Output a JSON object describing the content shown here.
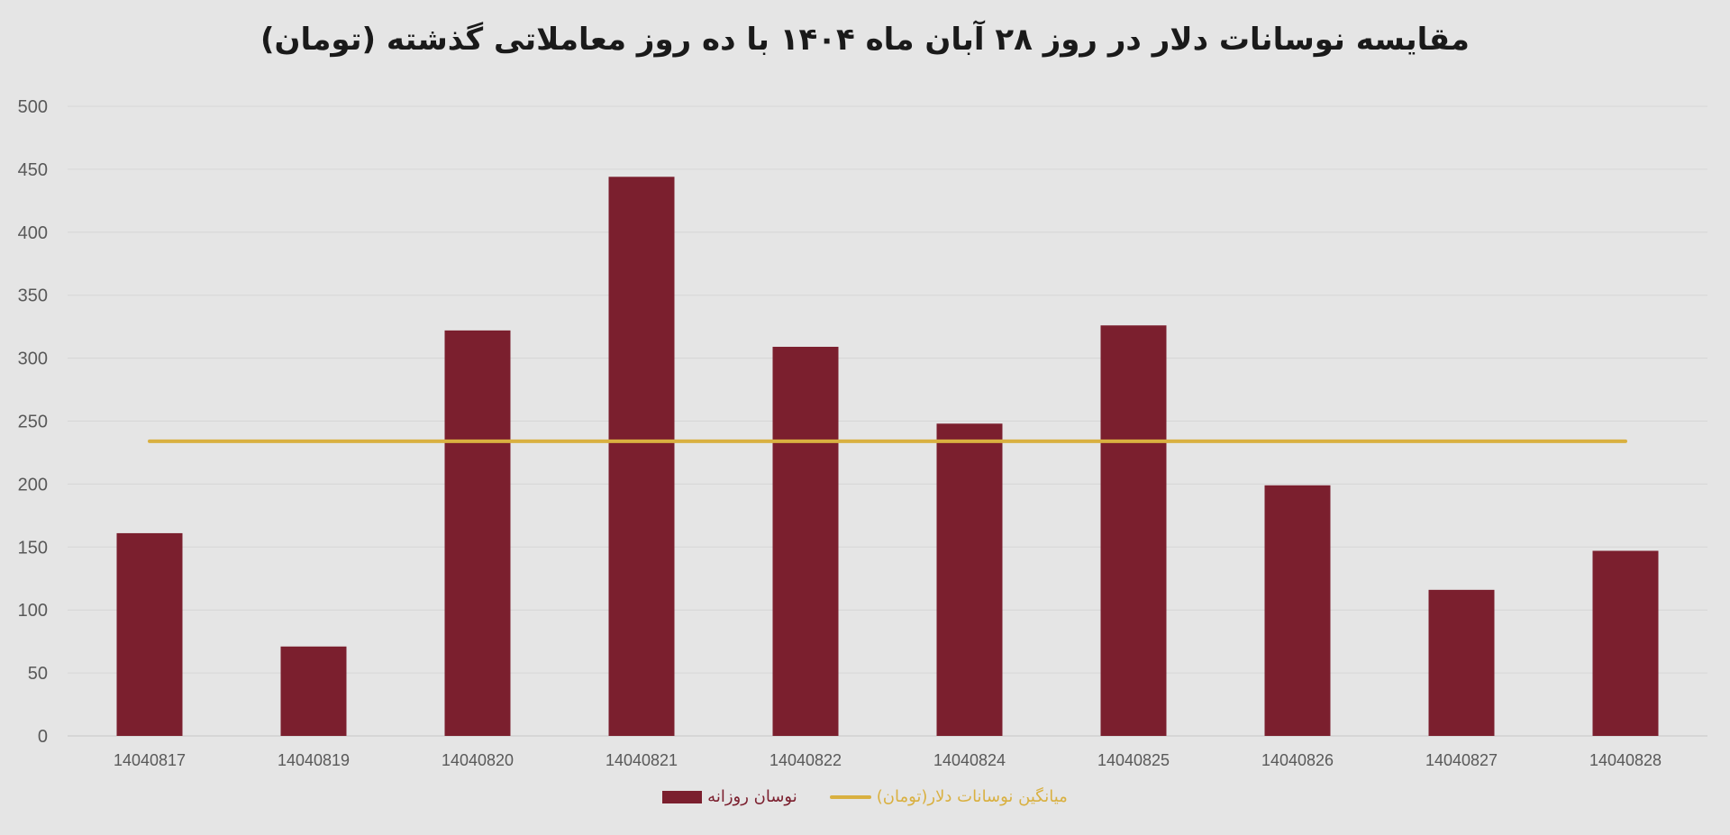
{
  "chart_data": {
    "type": "bar",
    "title": "مقایسه نوسانات دلار در روز ۲۸ آبان ماه ۱۴۰۴ با ده روز معاملاتی گذشته (تومان)",
    "categories": [
      "14040817",
      "14040819",
      "14040820",
      "14040821",
      "14040822",
      "14040824",
      "14040825",
      "14040826",
      "14040827",
      "14040828"
    ],
    "series": [
      {
        "name": "نوسان روزانه",
        "kind": "bar",
        "color": "#7b1f2e",
        "values": [
          161,
          71,
          322,
          444,
          309,
          248,
          326,
          199,
          116,
          147
        ]
      },
      {
        "name": "میانگین نوسانات دلار(تومان)",
        "kind": "line",
        "color": "#d9b040",
        "values": [
          234,
          234,
          234,
          234,
          234,
          234,
          234,
          234,
          234,
          234
        ]
      }
    ],
    "xlabel": "",
    "ylabel": "",
    "ylim": [
      0,
      500
    ],
    "yticks": [
      0,
      50,
      100,
      150,
      200,
      250,
      300,
      350,
      400,
      450,
      500
    ],
    "grid": true,
    "legend_position": "bottom"
  }
}
